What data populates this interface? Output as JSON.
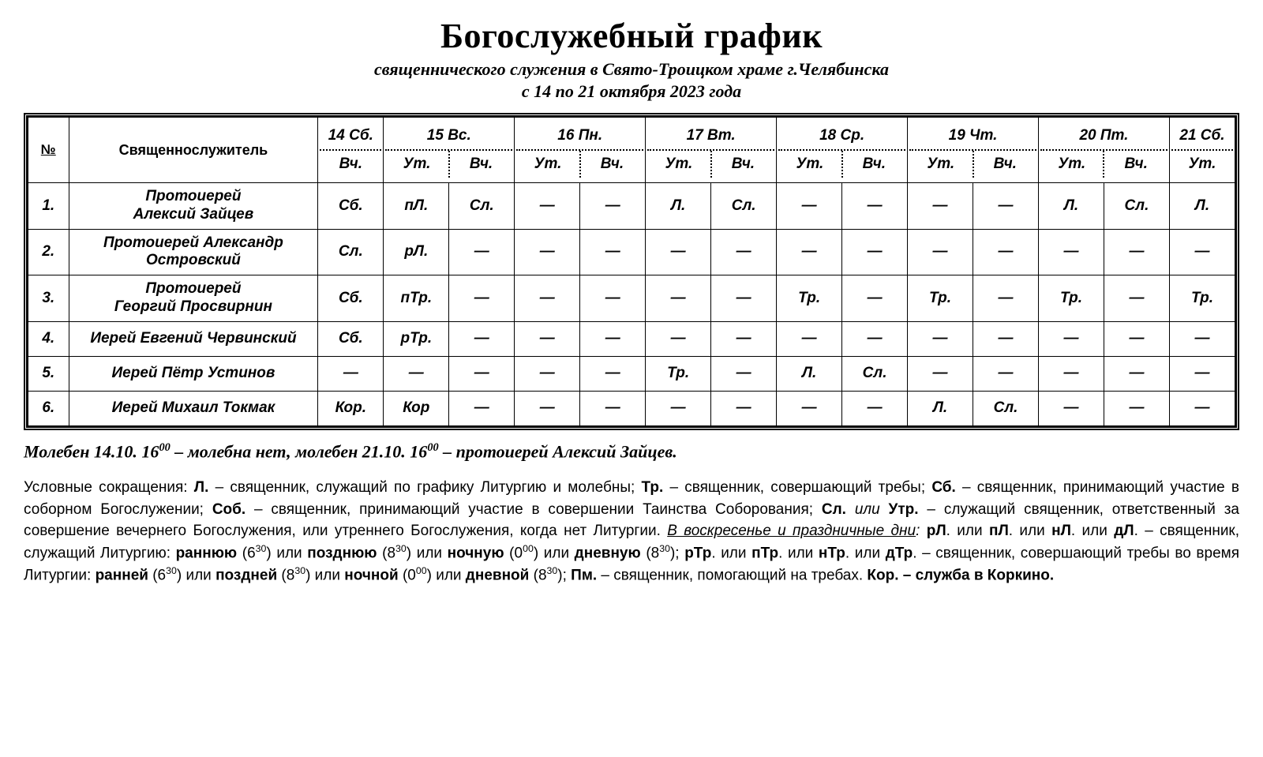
{
  "header": {
    "title": "Богослужебный график",
    "subtitle": "священнического служения в Свято-Троицком храме г.Челябинска",
    "daterange": "с 14 по 21 октября 2023 года"
  },
  "table": {
    "num_header": "№",
    "name_header": "Священнослужитель",
    "days": [
      {
        "label": "14 Сб.",
        "parts": [
          "Вч."
        ]
      },
      {
        "label": "15 Вс.",
        "parts": [
          "Ут.",
          "Вч."
        ]
      },
      {
        "label": "16 Пн.",
        "parts": [
          "Ут.",
          "Вч."
        ]
      },
      {
        "label": "17 Вт.",
        "parts": [
          "Ут.",
          "Вч."
        ]
      },
      {
        "label": "18 Ср.",
        "parts": [
          "Ут.",
          "Вч."
        ]
      },
      {
        "label": "19 Чт.",
        "parts": [
          "Ут.",
          "Вч."
        ]
      },
      {
        "label": "20 Пт.",
        "parts": [
          "Ут.",
          "Вч."
        ]
      },
      {
        "label": "21 Сб.",
        "parts": [
          "Ут."
        ]
      }
    ],
    "rows": [
      {
        "num": "1.",
        "name": "Протоиерей\nАлексий Зайцев",
        "cells": [
          "Сб.",
          "пЛ.",
          "Сл.",
          "—",
          "—",
          "Л.",
          "Сл.",
          "—",
          "—",
          "—",
          "—",
          "Л.",
          "Сл.",
          "Л."
        ]
      },
      {
        "num": "2.",
        "name": "Протоиерей Александр\nОстровский",
        "cells": [
          "Сл.",
          "рЛ.",
          "—",
          "—",
          "—",
          "—",
          "—",
          "—",
          "—",
          "—",
          "—",
          "—",
          "—",
          "—"
        ]
      },
      {
        "num": "3.",
        "name": "Протоиерей\nГеоргий Просвирнин",
        "cells": [
          "Сб.",
          "пТр.",
          "—",
          "—",
          "—",
          "—",
          "—",
          "Тр.",
          "—",
          "Тр.",
          "—",
          "Тр.",
          "—",
          "Тр."
        ]
      },
      {
        "num": "4.",
        "name": "Иерей Евгений Червинский",
        "cells": [
          "Сб.",
          "рТр.",
          "—",
          "—",
          "—",
          "—",
          "—",
          "—",
          "—",
          "—",
          "—",
          "—",
          "—",
          "—"
        ]
      },
      {
        "num": "5.",
        "name": "Иерей  Пётр Устинов",
        "cells": [
          "—",
          "—",
          "—",
          "—",
          "—",
          "Тр.",
          "—",
          "Л.",
          "Сл.",
          "—",
          "—",
          "—",
          "—",
          "—"
        ]
      },
      {
        "num": "6.",
        "name": "Иерей Михаил Токмак",
        "cells": [
          "Кор.",
          "Кор",
          "—",
          "—",
          "—",
          "—",
          "—",
          "—",
          "—",
          "Л.",
          "Сл.",
          "—",
          "—",
          "—"
        ]
      }
    ]
  },
  "notes": {
    "moleben_html": "Молебен 14.10. 16<sup>00</sup> – молебна нет, молебен 21.10. 16<sup>00</sup> – протоиерей Алексий Зайцев.",
    "legend_html": "Условные сокращения: <b>Л.</b> – священник, служащий по графику Литургию и молебны; <b>Тр.</b> – священник, совершающий требы;  <b>Сб.</b> – священник, принимающий участие в соборном Богослужении; <b>Соб.</b> – священник, принимающий участие в совершении Таинства Соборования; <b>Сл.</b> <i>или</i> <b>Утр.</b> – служащий священник, ответственный за совершение вечернего Богослужения, или утреннего Богослужения, когда нет Литургии. <i><u>В воскресенье и праздничные дни</u>:</i> <b>рЛ</b>. или <b>пЛ</b>. или <b>нЛ</b>. или <b>дЛ</b>. – священник, служащий Литургию: <b>раннюю</b> (6<sup>30</sup>) или <b>позднюю</b> (8<sup>30</sup>) или <b>ночную</b> (0<sup>00</sup>) или <b>дневную</b> (8<sup>30</sup>); <b>рТр</b>. или <b>пТр</b>. или <b>нТр</b>. или <b>дТр</b>. – священник, совершающий требы во время Литургии: <b>ранней</b> (6<sup>30</sup>) или <b>поздней</b> (8<sup>30</sup>) или <b>ночной</b> (0<sup>00</sup>) или <b>дневной</b> (8<sup>30</sup>); <b>Пм.</b> – священник, помогающий на требах. <b>Кор. – служба в Коркино.</b>"
  }
}
